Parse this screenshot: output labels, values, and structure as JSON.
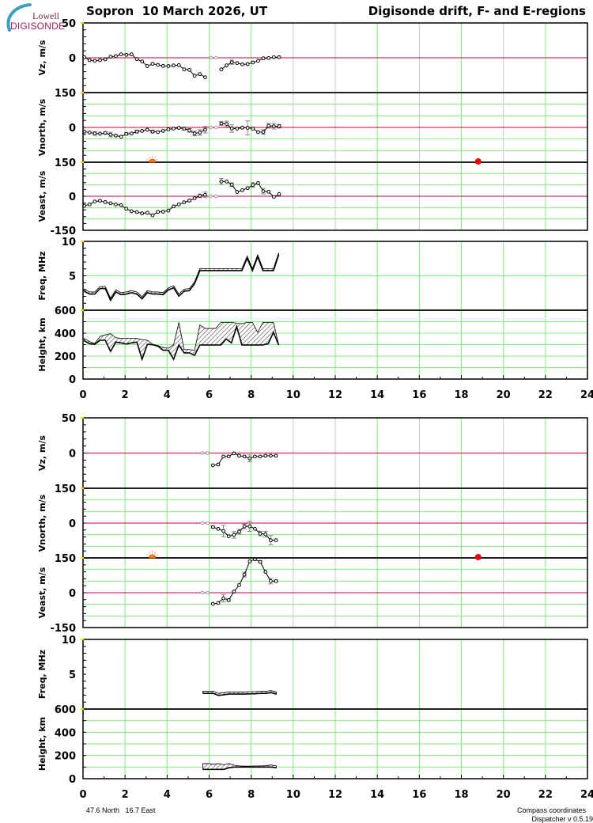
{
  "header": {
    "station": "Sopron  10 March 2026, UT",
    "title": "Digisonde drift, F- and E-regions",
    "logo_top": "Lowell",
    "logo_bottom": "DIGISONDE"
  },
  "footer": {
    "coords": "47.6 North   16.7 East",
    "compass": "Compass coordinates",
    "version": "Dispatcher v 0.5.19"
  },
  "colors": {
    "grid_green": "#7ef07e",
    "grid_gray": "#c8c8c8",
    "zero_line": "#c8003c",
    "error_bar": "#888888",
    "sun": "#ff8800",
    "sunset": "#ee0000"
  },
  "chart_data": [
    {
      "type": "line",
      "region": "F",
      "x_range": [
        0,
        24
      ],
      "x_tick_labels": [
        0,
        2,
        4,
        6,
        8,
        10,
        12,
        14,
        16,
        18,
        20,
        22,
        24
      ],
      "x_grid_gray": [
        10,
        12,
        16,
        20
      ],
      "sun": {
        "sunrise": 3.3,
        "sunset": 18.8
      },
      "panels": {
        "vz": {
          "ylabel": "Vz, m/s",
          "range": [
            -50,
            50
          ],
          "tick_labels": [
            50,
            0
          ],
          "grid": [],
          "zero_line": true,
          "nodata_t": [
            6.08,
            6.33
          ],
          "segments": [
            {
              "t0": 0.06,
              "dt": 0.25,
              "values": [
                0.8,
                -3.4,
                -4.5,
                -3.4,
                -2.3,
                1.5,
                2.3,
                4.9,
                4.2,
                4.9,
                -1.9,
                -5.3,
                -12,
                -8.7,
                -10.2,
                -11.7,
                -12,
                -11,
                -10.6,
                -16.7,
                -17.4,
                -25.8,
                -23.5,
                -28
              ],
              "err": []
            },
            {
              "t0": 6.58,
              "dt": 0.25,
              "values": [
                -16.7,
                -11,
                -6.4,
                -7.6,
                -9.5,
                -9.1,
                -6.8,
                -4.5,
                -0.8,
                -0.4,
                0.8,
                0.8
              ],
              "err": [
                0,
                0,
                3,
                0,
                0,
                0,
                0,
                0,
                0,
                0,
                0,
                0
              ]
            }
          ]
        },
        "vnorth": {
          "ylabel": "Vnorth, m/s",
          "range": [
            -150,
            150
          ],
          "tick_labels": [
            150,
            0
          ],
          "grid": [
            -100,
            -50,
            50,
            100
          ],
          "zero_line": true,
          "nodata_t": [
            6.08,
            6.33
          ],
          "segments": [
            {
              "t0": 0.06,
              "dt": 0.25,
              "values": [
                -18,
                -22,
                -26,
                -27,
                -24,
                -31,
                -35,
                -40,
                -28,
                -26,
                -18,
                -15,
                -10,
                -18,
                -20,
                -15,
                -8,
                -5,
                -2,
                -5,
                -13,
                -26,
                -22,
                -10
              ],
              "err": [
                0,
                0,
                8,
                0,
                5,
                10,
                0,
                0,
                5,
                0,
                6,
                0,
                0,
                6,
                0,
                0,
                0,
                0,
                0,
                6,
                8,
                10,
                12,
                14
              ]
            },
            {
              "t0": 6.58,
              "dt": 0.25,
              "values": [
                17,
                15,
                -5,
                -5,
                -1,
                -2,
                -5,
                -20,
                -20,
                7,
                5,
                5
              ],
              "err": [
                8,
                12,
                16,
                0,
                0,
                30,
                0,
                0,
                10,
                10,
                12,
                8
              ]
            }
          ]
        },
        "veast": {
          "ylabel": "Veast, m/s",
          "range": [
            -150,
            150
          ],
          "tick_labels": [
            150,
            0,
            -150
          ],
          "grid": [
            -100,
            -50,
            50,
            100
          ],
          "zero_line": true,
          "nodata_t": [
            6.08,
            6.33
          ],
          "segments": [
            {
              "t0": 0.06,
              "dt": 0.25,
              "values": [
                -42,
                -36,
                -23,
                -20,
                -26,
                -31,
                -36,
                -39,
                -55,
                -66,
                -70,
                -75,
                -73,
                -84,
                -69,
                -68,
                -63,
                -45,
                -36,
                -27,
                -19,
                -9,
                2,
                6
              ],
              "err": [
                0,
                0,
                0,
                0,
                0,
                0,
                0,
                0,
                0,
                0,
                0,
                0,
                0,
                0,
                0,
                0,
                0,
                0,
                0,
                0,
                5,
                0,
                8,
                12
              ]
            },
            {
              "t0": 6.58,
              "dt": 0.25,
              "values": [
                65,
                65,
                51,
                19,
                27,
                36,
                50,
                58,
                22,
                20,
                -3,
                9
              ],
              "err": [
                14,
                0,
                8,
                0,
                0,
                0,
                10,
                0,
                12,
                0,
                0,
                0
              ]
            }
          ]
        },
        "freq": {
          "ylabel": "Freq, MHz",
          "range": [
            0,
            10
          ],
          "tick_labels": [
            10,
            5
          ],
          "grid": [
            5
          ],
          "band": {
            "t0": 0.06,
            "dt": 0.25,
            "half_width": 0.15,
            "center": [
              2.9,
              2.5,
              2.5,
              3.3,
              3.3,
              1.6,
              2.8,
              2.4,
              2.5,
              2.7,
              2.5,
              1.8,
              2.7,
              2.5,
              2.5,
              2.4,
              3.1,
              3.4,
              2.2,
              2.9,
              3.0,
              4.0,
              5.9,
              5.9,
              5.9,
              5.9,
              5.9,
              5.9,
              5.9,
              5.9,
              5.9,
              7.7,
              5.9,
              7.9,
              5.9,
              5.9,
              5.9,
              8.2
            ]
          }
        },
        "height": {
          "ylabel": "Height, km",
          "range": [
            0,
            600
          ],
          "tick_labels": [
            600,
            400,
            200,
            0
          ],
          "grid": [
            100,
            200,
            300,
            400,
            500
          ],
          "band": {
            "t0": 0.06,
            "dt": 0.25,
            "top": [
              354,
              326,
              310,
              372,
              384,
              395,
              361,
              354,
              356,
              356,
              354,
              345,
              338,
              303,
              292,
              274,
              269,
              299,
              494,
              257,
              257,
              251,
              471,
              441,
              441,
              441,
              494,
              494,
              494,
              487,
              483,
              494,
              494,
              407,
              494,
              494,
              494,
              300
            ],
            "bottom": [
              333,
              308,
              303,
              338,
              338,
              241,
              322,
              315,
              306,
              315,
              322,
              172,
              303,
              299,
              287,
              251,
              251,
              172,
              297,
              228,
              228,
              207,
              297,
              297,
              297,
              297,
              297,
              349,
              315,
              457,
              297,
              297,
              297,
              297,
              297,
              308,
              407,
              297
            ]
          }
        }
      }
    },
    {
      "type": "line",
      "region": "E",
      "x_range": [
        0,
        24
      ],
      "x_tick_labels": [
        0,
        2,
        4,
        6,
        8,
        10,
        12,
        14,
        16,
        18,
        20,
        22,
        24
      ],
      "x_grid_gray": [
        10,
        12,
        16,
        20
      ],
      "sun": {
        "sunrise": 3.3,
        "sunset": 18.8
      },
      "panels": {
        "vz": {
          "ylabel": "Vz, m/s",
          "range": [
            -50,
            50
          ],
          "tick_labels": [
            50,
            0
          ],
          "grid": [],
          "zero_line": true,
          "nodata_t": [
            5.68,
            5.93
          ],
          "segments": [
            {
              "t0": 6.18,
              "dt": 0.25,
              "values": [
                -17.4,
                -16.3,
                -4.9,
                -4.9,
                -0.4,
                -3.8,
                -4.9,
                -7.6,
                -4.9,
                -4.9,
                -3.8,
                -3.8,
                -3.8
              ],
              "err": [
                0,
                0,
                0,
                0,
                0,
                0,
                0,
                5,
                0,
                0,
                0,
                0,
                0
              ]
            }
          ]
        },
        "vnorth": {
          "ylabel": "Vnorth, m/s",
          "range": [
            -150,
            150
          ],
          "tick_labels": [
            150,
            0
          ],
          "grid": [
            -100,
            -50,
            50,
            100
          ],
          "zero_line": true,
          "nodata_t": [
            5.68,
            5.93
          ],
          "segments": [
            {
              "t0": 6.18,
              "dt": 0.25,
              "values": [
                -17,
                -25,
                -34,
                -57,
                -51,
                -37,
                -14,
                -14,
                -25,
                -45,
                -48,
                -74,
                -74
              ],
              "err": [
                5,
                0,
                25,
                0,
                14,
                10,
                10,
                22,
                0,
                10,
                12,
                20,
                0
              ]
            }
          ]
        },
        "veast": {
          "ylabel": "Veast, m/s",
          "range": [
            -150,
            150
          ],
          "tick_labels": [
            150,
            0,
            -150
          ],
          "grid": [
            -100,
            -50,
            50,
            100
          ],
          "zero_line": true,
          "nodata_t": [
            5.68,
            5.93
          ],
          "segments": [
            {
              "t0": 6.18,
              "dt": 0.25,
              "values": [
                -48,
                -44,
                -24,
                -32,
                5,
                33,
                78,
                135,
                144,
                133,
                90,
                50,
                50
              ],
              "err": [
                0,
                0,
                16,
                5,
                0,
                0,
                10,
                0,
                0,
                5,
                0,
                12,
                5
              ]
            }
          ]
        },
        "freq": {
          "ylabel": "Freq, MHz",
          "range": [
            0,
            10
          ],
          "tick_labels": [
            10,
            5
          ],
          "grid": [],
          "band": {
            "t0": 5.7,
            "dt": 0.25,
            "half_width": 0.15,
            "center": [
              2.4,
              2.4,
              2.4,
              2.1,
              2.2,
              2.3,
              2.3,
              2.3,
              2.3,
              2.35,
              2.35,
              2.4,
              2.4,
              2.5,
              2.3
            ]
          }
        },
        "height": {
          "ylabel": "Height, km",
          "range": [
            0,
            600
          ],
          "tick_labels": [
            600,
            400,
            200,
            0
          ],
          "grid": [
            100,
            200,
            300,
            400,
            500
          ],
          "band": {
            "t0": 5.7,
            "dt": 0.25,
            "top": [
              130,
              130,
              125,
              130,
              120,
              130,
              115,
              110,
              108,
              108,
              110,
              110,
              112,
              118,
              110
            ],
            "bottom": [
              80,
              80,
              80,
              80,
              80,
              95,
              100,
              100,
              100,
              100,
              100,
              100,
              100,
              100,
              95
            ]
          }
        }
      }
    }
  ]
}
